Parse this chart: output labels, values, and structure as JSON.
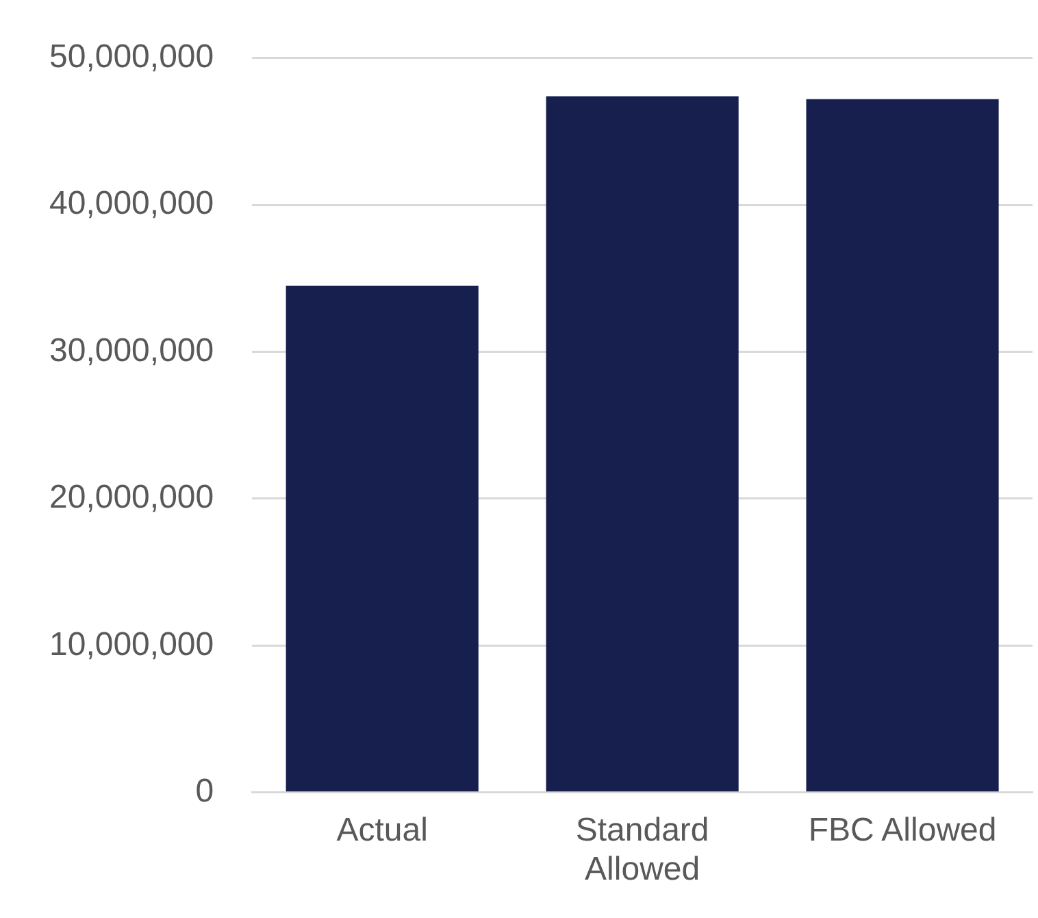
{
  "chart_data": {
    "type": "bar",
    "categories": [
      "Actual",
      "Standard Allowed",
      "FBC Allowed"
    ],
    "values": [
      34500000,
      47400000,
      47200000
    ],
    "color": "#161f4e",
    "ylim": [
      0,
      50000000
    ],
    "yticks": [
      0,
      {
        "value": 10000000,
        "label": "10,000,000"
      },
      {
        "value": 20000000,
        "label": "20,000,000"
      },
      {
        "value": 30000000,
        "label": "30,000,000"
      },
      {
        "value": 40000000,
        "label": "40,000,000"
      },
      {
        "value": 50000000,
        "label": "50,000,000"
      }
    ],
    "grid": "y",
    "legend": false
  }
}
